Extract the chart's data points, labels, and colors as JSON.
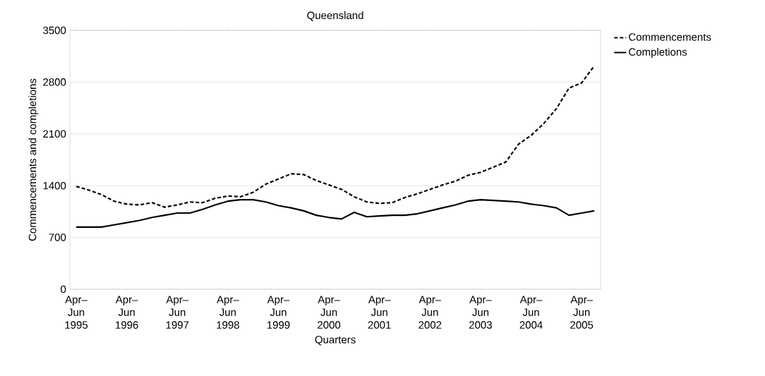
{
  "chart_data": {
    "type": "line",
    "title": "Queensland",
    "xlabel": "Quarters",
    "ylabel": "Commencements and completions",
    "categories": [
      "Apr–Jun 1995",
      null,
      null,
      null,
      "Apr–Jun 1996",
      null,
      null,
      null,
      "Apr–Jun 1997",
      null,
      null,
      null,
      "Apr–Jun 1998",
      null,
      null,
      null,
      "Apr–Jun 1999",
      null,
      null,
      null,
      "Apr–Jun 2000",
      null,
      null,
      null,
      "Apr–Jun 2001",
      null,
      null,
      null,
      "Apr–Jun 2002",
      null,
      null,
      null,
      "Apr–Jun 2003",
      null,
      null,
      null,
      "Apr–Jun 2004",
      null,
      null,
      null,
      "Apr–Jun 2005",
      null
    ],
    "series": [
      {
        "name": "Commencements",
        "color": "#000000",
        "line_style": "dashed",
        "values": [
          1390,
          1340,
          1280,
          1190,
          1150,
          1140,
          1170,
          1110,
          1140,
          1180,
          1170,
          1230,
          1260,
          1250,
          1310,
          1420,
          1490,
          1560,
          1550,
          1470,
          1410,
          1350,
          1250,
          1180,
          1160,
          1170,
          1240,
          1290,
          1350,
          1410,
          1460,
          1540,
          1580,
          1650,
          1720,
          1960,
          2080,
          2240,
          2440,
          2720,
          2790,
          3020
        ]
      },
      {
        "name": "Completions",
        "color": "#000000",
        "line_style": "solid",
        "values": [
          840,
          840,
          840,
          870,
          900,
          930,
          970,
          1000,
          1030,
          1030,
          1080,
          1140,
          1190,
          1210,
          1210,
          1180,
          1130,
          1100,
          1060,
          1000,
          970,
          950,
          1040,
          980,
          990,
          1000,
          1000,
          1020,
          1060,
          1100,
          1140,
          1190,
          1210,
          1200,
          1190,
          1180,
          1150,
          1130,
          1100,
          1000,
          1030,
          1060
        ]
      }
    ],
    "ylim": [
      0,
      3500
    ],
    "yticks": [
      0,
      700,
      1400,
      2100,
      2800,
      3500
    ],
    "grid": "y",
    "legend": "top right"
  }
}
